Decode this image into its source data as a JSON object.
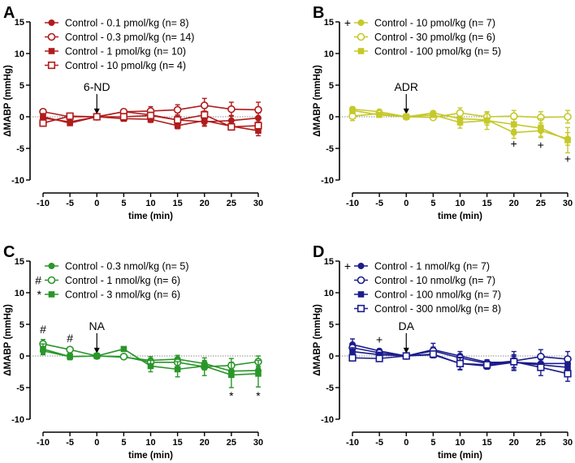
{
  "chart_data": [
    {
      "panel": "A",
      "type": "line",
      "color": "#b01c1c",
      "xlabel": "time (min)",
      "ylabel": "ΔMABP (mmHg)",
      "xlim": [
        -10,
        30
      ],
      "ylim": [
        -10,
        15
      ],
      "x": [
        -10,
        -5,
        0,
        5,
        10,
        15,
        20,
        25,
        30
      ],
      "xticks": [
        "-10",
        "-5",
        "0",
        "5",
        "10",
        "15",
        "20",
        "25",
        "30"
      ],
      "yticks": [
        "-10",
        "-5",
        "0",
        "5",
        "10",
        "15"
      ],
      "arrow": {
        "label": "6-ND",
        "x": 0
      },
      "series": [
        {
          "name": "Control - 0.1 pmol/kg (n= 8)",
          "marker": "filled-circle",
          "values": [
            -0.2,
            -0.8,
            0,
            0.8,
            0.3,
            -0.5,
            -0.8,
            -0.6,
            -0.2
          ],
          "err": [
            0.6,
            0.4,
            0,
            0.4,
            0.5,
            0.6,
            0.7,
            0.8,
            0.8
          ]
        },
        {
          "name": "Control - 0.3 pmol/kg (n= 14)",
          "marker": "open-circle",
          "values": [
            0.8,
            0,
            0,
            0.8,
            0.9,
            1.1,
            1.8,
            1.2,
            1.1
          ],
          "err": [
            0.4,
            0.3,
            0,
            0.4,
            0.7,
            0.8,
            1.1,
            1.1,
            1.2
          ]
        },
        {
          "name": "Control - 1 pmol/kg (n= 10)",
          "marker": "filled-square",
          "values": [
            0,
            -1,
            0,
            -0.3,
            -0.4,
            -1.4,
            -0.6,
            -1.5,
            -2.2
          ],
          "err": [
            0.5,
            0.4,
            0,
            0.4,
            0.5,
            0.5,
            0.8,
            0.6,
            0.8
          ]
        },
        {
          "name": "Control - 10 pmol/kg (n= 4)",
          "marker": "open-square",
          "values": [
            -1,
            0.1,
            0,
            0,
            0.2,
            -0.5,
            0.3,
            -1.6,
            -1.4
          ],
          "err": [
            0.5,
            0.3,
            0,
            0.3,
            0.5,
            0.6,
            0.6,
            0.5,
            0.6
          ]
        }
      ],
      "annotations": []
    },
    {
      "panel": "B",
      "type": "line",
      "color": "#c5c92a",
      "xlabel": "time (min)",
      "ylabel": "ΔMABP (mmHg)",
      "xlim": [
        -10,
        30
      ],
      "ylim": [
        -10,
        15
      ],
      "x": [
        -10,
        -5,
        0,
        5,
        10,
        15,
        20,
        25,
        30
      ],
      "xticks": [
        "-10",
        "-5",
        "0",
        "5",
        "10",
        "15",
        "20",
        "25",
        "30"
      ],
      "yticks": [
        "-10",
        "-5",
        "0",
        "5",
        "10",
        "15"
      ],
      "arrow": {
        "label": "ADR",
        "x": 0
      },
      "series": [
        {
          "name": "Control - 10 pmol/kg (n= 7)",
          "legend_mark": "+",
          "marker": "filled-circle",
          "values": [
            1.2,
            0.8,
            0,
            0.6,
            -0.3,
            -0.5,
            -2.5,
            -2.2,
            -3.5
          ],
          "err": [
            0.4,
            0.3,
            0,
            0.3,
            0.6,
            0.8,
            0.9,
            0.9,
            1.0
          ]
        },
        {
          "name": "Control - 30 pmol/kg (n= 6)",
          "marker": "open-circle",
          "values": [
            0.1,
            0.5,
            0,
            -0.1,
            0.6,
            0,
            0.1,
            -0.1,
            0
          ],
          "err": [
            0.7,
            0.3,
            0,
            0.3,
            0.8,
            0.7,
            0.9,
            0.9,
            1.0
          ]
        },
        {
          "name": "Control - 100 pmol/kg (n= 5)",
          "marker": "filled-square",
          "values": [
            1,
            0.3,
            0,
            0.3,
            -0.9,
            -0.6,
            -1.2,
            -1.8,
            -3.7
          ],
          "err": [
            0.5,
            0.4,
            0,
            0.3,
            0.9,
            1.4,
            0.8,
            1.5,
            2.0
          ]
        }
      ],
      "annotations": [
        {
          "text": "+",
          "x": 20,
          "y": -4.2
        },
        {
          "text": "+",
          "x": 25,
          "y": -4.4
        },
        {
          "text": "+",
          "x": 30,
          "y": -6.6
        }
      ]
    },
    {
      "panel": "C",
      "type": "line",
      "color": "#2a962a",
      "xlabel": "time (min)",
      "ylabel": "ΔMABP (mmHg)",
      "xlim": [
        -10,
        30
      ],
      "ylim": [
        -10,
        15
      ],
      "x": [
        -10,
        -5,
        0,
        5,
        10,
        15,
        20,
        25,
        30
      ],
      "xticks": [
        "-10",
        "-5",
        "0",
        "5",
        "10",
        "15",
        "20",
        "25",
        "30"
      ],
      "yticks": [
        "-10",
        "-5",
        "0",
        "5",
        "10",
        "15"
      ],
      "arrow": {
        "label": "NA",
        "x": 0
      },
      "series": [
        {
          "name": "Control - 0.3 nmol/kg (n= 5)",
          "marker": "filled-circle",
          "values": [
            0.8,
            -0.1,
            0,
            -0.2,
            -0.7,
            -0.5,
            -1.2,
            -2.4,
            -2.3
          ],
          "err": [
            0.6,
            0.4,
            0,
            0.3,
            0.6,
            0.6,
            0.5,
            0.8,
            0.7
          ]
        },
        {
          "name": "Control - 1 nmol/kg (n= 6)",
          "legend_mark": "#",
          "marker": "open-circle",
          "values": [
            1.9,
            1,
            0,
            -0.1,
            -1,
            -1,
            -1.7,
            -1.5,
            -0.9
          ],
          "err": [
            0.7,
            0.3,
            0,
            0.3,
            0.6,
            0.7,
            1.4,
            1.1,
            0.9
          ]
        },
        {
          "name": "Control - 3 nmol/kg (n= 6)",
          "legend_mark": "*",
          "marker": "filled-square",
          "values": [
            1.1,
            -0.1,
            0,
            1.1,
            -1.6,
            -2.1,
            -1.6,
            -3,
            -2.8
          ],
          "err": [
            0.8,
            0.5,
            0,
            0.3,
            0.9,
            1.2,
            0.6,
            2.0,
            2.1
          ]
        }
      ],
      "annotations": [
        {
          "text": "#",
          "x": -10,
          "y": 4.2
        },
        {
          "text": "#",
          "x": -5,
          "y": 2.8
        },
        {
          "text": "*",
          "x": 25,
          "y": -6.3
        },
        {
          "text": "*",
          "x": 30,
          "y": -6.3
        }
      ]
    },
    {
      "panel": "D",
      "type": "line",
      "color": "#1c1c8c",
      "xlabel": "time (min)",
      "ylabel": "ΔMABP (mmHg)",
      "xlim": [
        -10,
        30
      ],
      "ylim": [
        -10,
        15
      ],
      "x": [
        -10,
        -5,
        0,
        5,
        10,
        15,
        20,
        25,
        30
      ],
      "xticks": [
        "-10",
        "-5",
        "0",
        "5",
        "10",
        "15",
        "20",
        "25",
        "30"
      ],
      "yticks": [
        "-10",
        "-5",
        "0",
        "5",
        "10",
        "15"
      ],
      "arrow": {
        "label": "DA",
        "x": 0
      },
      "series": [
        {
          "name": "Control - 1 nmol/kg (n= 7)",
          "legend_mark": "+",
          "marker": "filled-circle",
          "values": [
            1.8,
            0.8,
            0,
            1,
            0,
            -1,
            -1,
            -1.2,
            -1.2
          ],
          "err": [
            0.9,
            0.3,
            0,
            1.0,
            0.7,
            0.4,
            0.9,
            0.8,
            0.9
          ]
        },
        {
          "name": "Control - 10 nmol/kg (n= 7)",
          "marker": "open-circle",
          "values": [
            1.3,
            0.5,
            0,
            0.8,
            -0.3,
            -1.2,
            -0.8,
            -0.1,
            -0.5
          ],
          "err": [
            0.7,
            0.3,
            0,
            0.6,
            0.5,
            0.4,
            1.5,
            1.1,
            1.2
          ]
        },
        {
          "name": "Control - 100 nmol/kg (n= 7)",
          "marker": "filled-square",
          "values": [
            0.7,
            0.2,
            0,
            0.2,
            -1.2,
            -1.6,
            -1,
            -1.4,
            -1.8
          ],
          "err": [
            0.6,
            0.3,
            0,
            0.5,
            0.9,
            0.5,
            1.2,
            0.8,
            0.9
          ]
        },
        {
          "name": "Control - 300 nmol/kg (n= 8)",
          "marker": "open-square",
          "values": [
            -0.3,
            -0.4,
            0,
            0.3,
            -1.2,
            -1.4,
            -0.9,
            -1.8,
            -2.8
          ],
          "err": [
            0.4,
            0.3,
            0,
            0.4,
            1.0,
            0.5,
            0.9,
            1.3,
            1.2
          ]
        }
      ],
      "annotations": [
        {
          "text": "+",
          "x": -5,
          "y": 2.6
        }
      ]
    }
  ]
}
